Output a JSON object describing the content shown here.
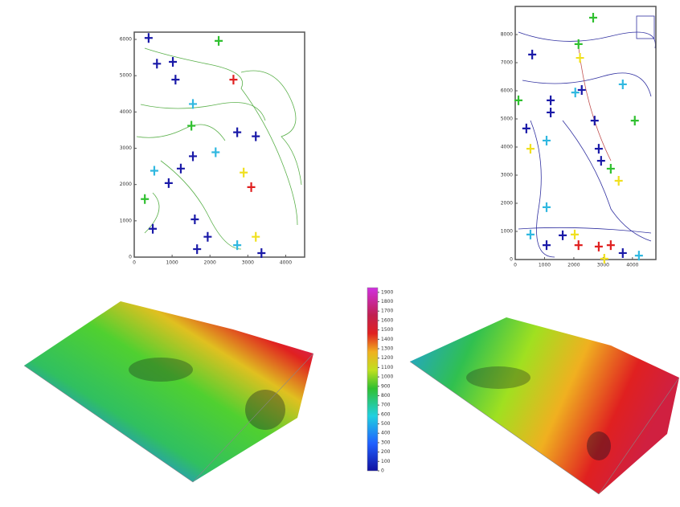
{
  "chart_data": [
    {
      "type": "scatter",
      "xlim": [
        0,
        4500
      ],
      "ylim": [
        0,
        6200
      ],
      "xticks": [
        0,
        1000,
        2000,
        3000,
        4000
      ],
      "yticks": [
        0,
        1000,
        2000,
        3000,
        4000,
        5000,
        6000
      ],
      "x": [
        380,
        600,
        1020,
        1090,
        2620,
        2230,
        1550,
        1510,
        2720,
        3210,
        1550,
        1230,
        910,
        2890,
        3090,
        280,
        1600,
        490,
        1940,
        3210,
        1660,
        2720,
        3360,
        530,
        2150
      ],
      "y": [
        6040,
        5330,
        5380,
        4890,
        4890,
        5960,
        4220,
        3620,
        3440,
        3330,
        2780,
        2440,
        2040,
        2330,
        1930,
        1600,
        1040,
        780,
        560,
        560,
        220,
        330,
        110,
        2380,
        2890
      ],
      "colors": [
        "#1a1aa8",
        "#1a1aa8",
        "#1a1aa8",
        "#1a1aa8",
        "#e02020",
        "#30c030",
        "#30b8e0",
        "#30c030",
        "#1a1aa8",
        "#1a1aa8",
        "#1a1aa8",
        "#1a1aa8",
        "#1a1aa8",
        "#f0e020",
        "#e02020",
        "#30c030",
        "#1a1aa8",
        "#1a1aa8",
        "#1a1aa8",
        "#f0e020",
        "#1a1aa8",
        "#30b8e0",
        "#1a1aa8",
        "#30b8e0",
        "#30b8e0"
      ]
    },
    {
      "type": "scatter",
      "xlim": [
        0,
        4800
      ],
      "ylim": [
        0,
        9000
      ],
      "xticks": [
        0,
        1000,
        2000,
        3000,
        4000
      ],
      "yticks": [
        0,
        1000,
        2000,
        3000,
        4000,
        5000,
        6000,
        7000,
        8000
      ],
      "x": [
        580,
        2160,
        2210,
        2660,
        2050,
        2270,
        1210,
        1210,
        110,
        380,
        520,
        1070,
        2710,
        2850,
        2930,
        3260,
        3530,
        4080,
        3670,
        1070,
        520,
        1070,
        1620,
        2160,
        2850,
        3260,
        3670,
        3040,
        4220,
        2030
      ],
      "y": [
        7290,
        7660,
        7170,
        8600,
        5940,
        6030,
        5660,
        5230,
        5660,
        4660,
        3940,
        4230,
        4940,
        3940,
        3510,
        3230,
        2800,
        4940,
        6230,
        1860,
        890,
        510,
        860,
        510,
        460,
        510,
        230,
        30,
        140,
        890
      ],
      "colors": [
        "#1a1aa8",
        "#30c030",
        "#f0e020",
        "#30c030",
        "#30b8e0",
        "#1a1aa8",
        "#1a1aa8",
        "#1a1aa8",
        "#30c030",
        "#1a1aa8",
        "#f0e020",
        "#30b8e0",
        "#1a1aa8",
        "#1a1aa8",
        "#1a1aa8",
        "#30c030",
        "#f0e020",
        "#30c030",
        "#30b8e0",
        "#30b8e0",
        "#30b8e0",
        "#1a1aa8",
        "#1a1aa8",
        "#e02020",
        "#e02020",
        "#e02020",
        "#1a1aa8",
        "#f0e020",
        "#30b8e0",
        "#f0e020"
      ]
    },
    {
      "type": "colorbar",
      "ylim": [
        0,
        1950
      ],
      "yticks": [
        0,
        100,
        200,
        300,
        400,
        500,
        600,
        700,
        800,
        900,
        1000,
        1100,
        1200,
        1300,
        1400,
        1500,
        1600,
        1700,
        1800,
        1900
      ]
    }
  ]
}
